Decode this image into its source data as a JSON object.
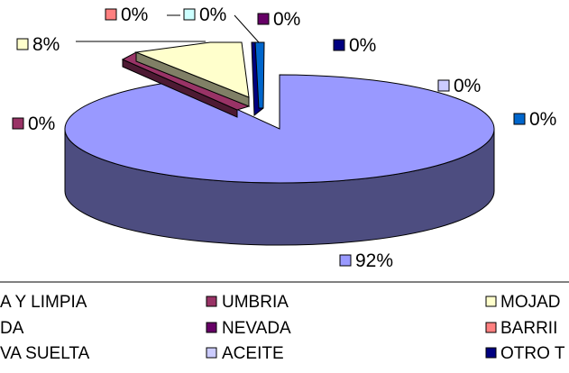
{
  "chart_data": {
    "type": "pie",
    "subtype": "3d-exploded",
    "slices": [
      {
        "name": "SECA Y LIMPIA",
        "percent": 92,
        "value_label": "92%",
        "color": "#9999ff",
        "side_color": "#4d4d80"
      },
      {
        "name": "UMBRIA",
        "percent": 0.3,
        "value_label": "0%",
        "color": "#993366",
        "side_color": "#4d1a33"
      },
      {
        "name": "MOJADA",
        "percent": 8,
        "value_label": "8%",
        "color": "#ffffcc",
        "side_color": "#808066"
      },
      {
        "name": "NEVADA",
        "percent": 0.3,
        "value_label": "0%",
        "color": "#660066",
        "side_color": "#330033"
      },
      {
        "name": "BARRIDA",
        "percent": 0.3,
        "value_label": "0%",
        "color": "#ff8080",
        "side_color": "#804040"
      },
      {
        "name": "GRAVA SUELTA",
        "percent": 0.3,
        "value_label": "0%",
        "color": "#ccffff",
        "side_color": "#668080"
      },
      {
        "name": "ACEITE",
        "percent": 0.3,
        "value_label": "0%",
        "color": "#ccccff",
        "side_color": "#666680"
      },
      {
        "name": "OTRO TIPO",
        "percent": 0.3,
        "value_label": "0%",
        "color": "#000080",
        "side_color": "#000040"
      },
      {
        "name": "",
        "percent": 0.3,
        "value_label": "0%",
        "color": "#0066cc",
        "side_color": "#003366"
      }
    ],
    "legend": {
      "placement": "bottom",
      "visible_rows": [
        [
          "A Y LIMPIA",
          "UMBRIA",
          "MOJAD"
        ],
        [
          "DA",
          "NEVADA",
          "BARRII"
        ],
        [
          "VA SUELTA",
          "ACEITE",
          "OTRO T"
        ]
      ],
      "swatch_colors": [
        [
          "#9999ff",
          "#993366",
          "#ffffcc"
        ],
        [
          "#ff8080",
          "#660066",
          "#ff8080"
        ],
        [
          "#ccffff",
          "#ccccff",
          "#000080"
        ]
      ]
    }
  }
}
